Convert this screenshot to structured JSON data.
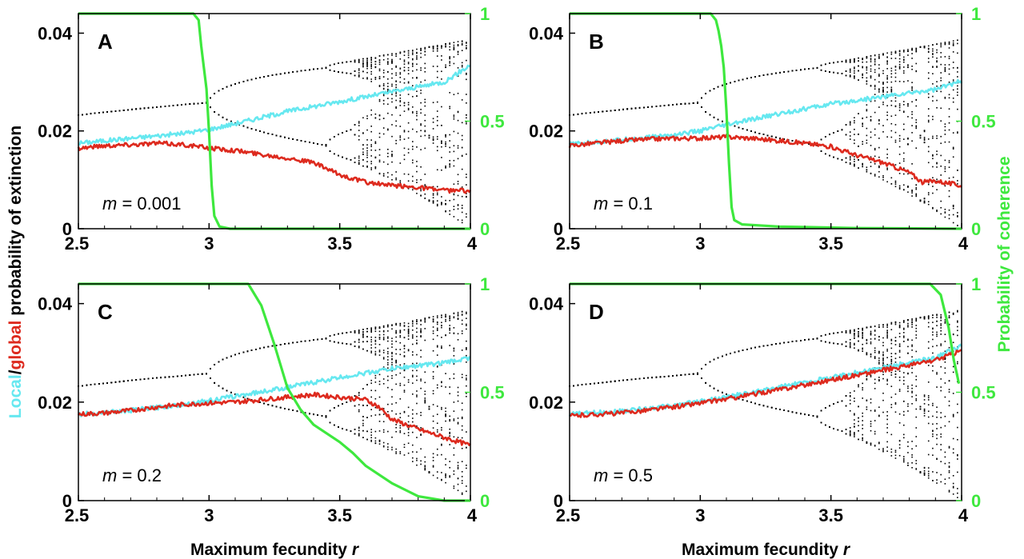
{
  "y_label_parts": [
    "Local",
    "/",
    "global",
    " probability of extinction"
  ],
  "y_right_label": "Probability of coherence",
  "x_label_text": "Maximum fecundity",
  "x_label_var": "r",
  "colors": {
    "local": "#66e8f0",
    "global": "#dd2a1e",
    "coherence": "#3ee83e",
    "bifurcation": "#000000",
    "axes": "#000000"
  },
  "chart_data": [
    {
      "panel": "A",
      "type": "line",
      "m_var": "m",
      "m_eq": " = 0.001",
      "xlim": [
        2.5,
        4
      ],
      "ylim": [
        0,
        0.044
      ],
      "y2lim": [
        0,
        1
      ],
      "xticks": [
        "2.5",
        "3",
        "3.5",
        "4"
      ],
      "yticks": [
        "0",
        "0.02",
        "0.04"
      ],
      "y2ticks": [
        "0",
        "0.5",
        "1"
      ],
      "series": [
        {
          "name": "Local",
          "axis": "left",
          "x": [
            2.5,
            2.7,
            2.9,
            3.0,
            3.1,
            3.3,
            3.5,
            3.7,
            3.9,
            4.0
          ],
          "y": [
            0.0175,
            0.0185,
            0.0195,
            0.0203,
            0.0215,
            0.024,
            0.026,
            0.028,
            0.03,
            0.0335
          ]
        },
        {
          "name": "Global",
          "axis": "left",
          "x": [
            2.5,
            2.6,
            2.7,
            2.8,
            2.9,
            3.0,
            3.1,
            3.2,
            3.3,
            3.4,
            3.5,
            3.6,
            3.7,
            3.8,
            3.9,
            4.0
          ],
          "y": [
            0.0165,
            0.017,
            0.0172,
            0.0175,
            0.0172,
            0.0165,
            0.016,
            0.0152,
            0.0145,
            0.0135,
            0.011,
            0.0095,
            0.0088,
            0.0085,
            0.0078,
            0.0078
          ]
        },
        {
          "name": "Coherence",
          "axis": "right",
          "x": [
            2.5,
            2.9,
            2.94,
            2.96,
            2.97,
            2.98,
            2.99,
            3.0,
            3.01,
            3.02,
            3.04,
            3.08,
            4.0
          ],
          "y": [
            1,
            1,
            1,
            0.97,
            0.85,
            0.75,
            0.65,
            0.45,
            0.2,
            0.06,
            0.01,
            0,
            0
          ]
        }
      ]
    },
    {
      "panel": "B",
      "type": "line",
      "m_var": "m",
      "m_eq": " = 0.1",
      "xlim": [
        2.5,
        4
      ],
      "ylim": [
        0,
        0.044
      ],
      "y2lim": [
        0,
        1
      ],
      "xticks": [
        "2.5",
        "3",
        "3.5",
        "4"
      ],
      "yticks": [
        "0",
        "0.02",
        "0.04"
      ],
      "y2ticks": [
        "0",
        "0.5",
        "1"
      ],
      "series": [
        {
          "name": "Local",
          "axis": "left",
          "x": [
            2.5,
            2.7,
            2.9,
            3.0,
            3.1,
            3.3,
            3.5,
            3.7,
            3.9,
            4.0
          ],
          "y": [
            0.0172,
            0.0182,
            0.0192,
            0.02,
            0.0212,
            0.0235,
            0.0255,
            0.027,
            0.0285,
            0.0302
          ]
        },
        {
          "name": "Global",
          "axis": "left",
          "x": [
            2.5,
            2.6,
            2.7,
            2.8,
            2.9,
            3.0,
            3.1,
            3.2,
            3.3,
            3.4,
            3.5,
            3.6,
            3.7,
            3.8,
            3.85,
            3.9,
            4.0
          ],
          "y": [
            0.017,
            0.0175,
            0.018,
            0.0183,
            0.0185,
            0.0185,
            0.0188,
            0.0185,
            0.018,
            0.0175,
            0.0168,
            0.015,
            0.0135,
            0.0115,
            0.0095,
            0.0098,
            0.0088
          ]
        },
        {
          "name": "Coherence",
          "axis": "right",
          "x": [
            2.5,
            3.0,
            3.04,
            3.06,
            3.07,
            3.08,
            3.09,
            3.1,
            3.11,
            3.12,
            3.13,
            3.16,
            3.3,
            3.6,
            4.0
          ],
          "y": [
            1,
            1,
            1,
            0.97,
            0.92,
            0.85,
            0.75,
            0.55,
            0.3,
            0.1,
            0.04,
            0.02,
            0.01,
            0.003,
            0
          ]
        }
      ]
    },
    {
      "panel": "C",
      "type": "line",
      "m_var": "m",
      "m_eq": " = 0.2",
      "xlim": [
        2.5,
        4
      ],
      "ylim": [
        0,
        0.044
      ],
      "y2lim": [
        0,
        1
      ],
      "xticks": [
        "2.5",
        "3",
        "3.5",
        "4"
      ],
      "yticks": [
        "0",
        "0.02",
        "0.04"
      ],
      "y2ticks": [
        "0",
        "0.5",
        "1"
      ],
      "series": [
        {
          "name": "Local",
          "axis": "left",
          "x": [
            2.5,
            2.7,
            2.9,
            3.0,
            3.1,
            3.3,
            3.5,
            3.7,
            3.9,
            4.0
          ],
          "y": [
            0.0175,
            0.0183,
            0.0195,
            0.0203,
            0.0212,
            0.023,
            0.025,
            0.0268,
            0.028,
            0.029
          ]
        },
        {
          "name": "Global",
          "axis": "left",
          "x": [
            2.5,
            2.6,
            2.7,
            2.8,
            2.9,
            3.0,
            3.1,
            3.2,
            3.3,
            3.4,
            3.5,
            3.6,
            3.65,
            3.7,
            3.8,
            3.9,
            4.0
          ],
          "y": [
            0.0175,
            0.0178,
            0.0183,
            0.019,
            0.0195,
            0.0198,
            0.02,
            0.0205,
            0.021,
            0.0215,
            0.021,
            0.0205,
            0.019,
            0.0165,
            0.0145,
            0.0128,
            0.0112
          ]
        },
        {
          "name": "Coherence",
          "axis": "right",
          "x": [
            2.5,
            3.15,
            3.2,
            3.25,
            3.3,
            3.35,
            3.4,
            3.5,
            3.55,
            3.6,
            3.7,
            3.8,
            3.9,
            4.0
          ],
          "y": [
            1,
            1,
            0.9,
            0.72,
            0.52,
            0.42,
            0.35,
            0.27,
            0.22,
            0.16,
            0.08,
            0.02,
            0,
            0
          ]
        }
      ]
    },
    {
      "panel": "D",
      "type": "line",
      "m_var": "m",
      "m_eq": " = 0.5",
      "xlim": [
        2.5,
        4
      ],
      "ylim": [
        0,
        0.044
      ],
      "y2lim": [
        0,
        1
      ],
      "xticks": [
        "2.5",
        "3",
        "3.5",
        "4"
      ],
      "yticks": [
        "0",
        "0.02",
        "0.04"
      ],
      "y2ticks": [
        "0",
        "0.5",
        "1"
      ],
      "series": [
        {
          "name": "Local",
          "axis": "left",
          "x": [
            2.5,
            2.7,
            2.9,
            3.0,
            3.1,
            3.3,
            3.5,
            3.7,
            3.9,
            4.0
          ],
          "y": [
            0.0175,
            0.0182,
            0.0193,
            0.0202,
            0.021,
            0.023,
            0.025,
            0.027,
            0.029,
            0.0315
          ]
        },
        {
          "name": "Global",
          "axis": "left",
          "x": [
            2.5,
            2.7,
            2.9,
            3.0,
            3.1,
            3.3,
            3.5,
            3.7,
            3.9,
            4.0
          ],
          "y": [
            0.0172,
            0.0178,
            0.019,
            0.0198,
            0.0206,
            0.0225,
            0.0245,
            0.0265,
            0.0285,
            0.0305
          ]
        },
        {
          "name": "Coherence",
          "axis": "right",
          "x": [
            2.5,
            3.8,
            3.88,
            3.92,
            3.95,
            3.97,
            3.99
          ],
          "y": [
            1,
            1,
            1,
            0.95,
            0.8,
            0.65,
            0.54
          ]
        }
      ]
    }
  ]
}
